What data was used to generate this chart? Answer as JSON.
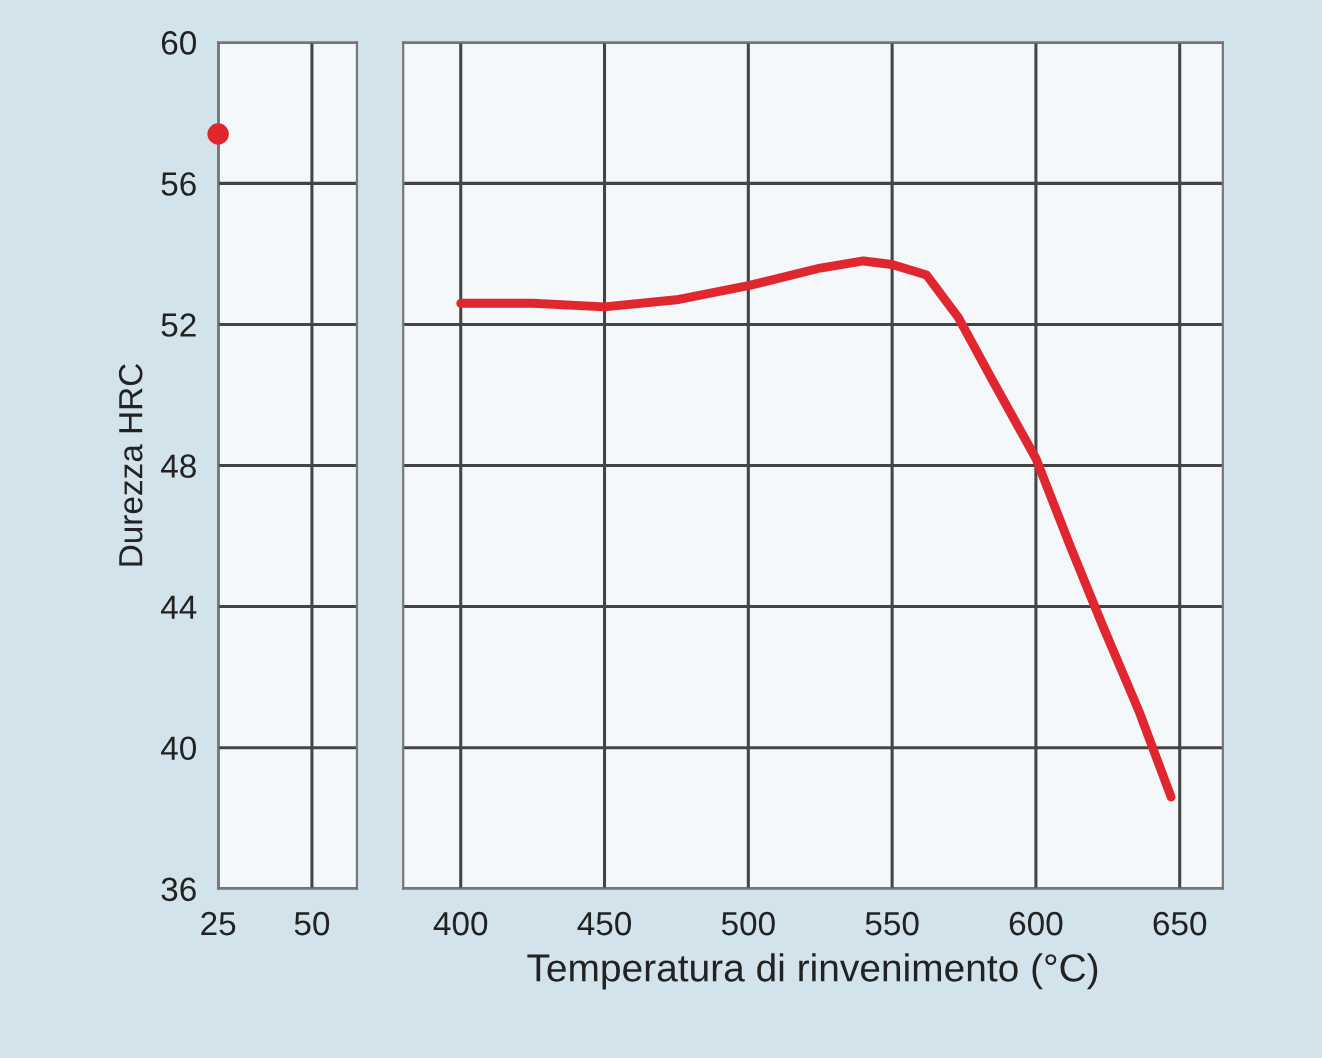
{
  "chart_data": [
    {
      "type": "scatter",
      "ylabel": "Durezza HRC",
      "x": [
        25
      ],
      "series": [
        {
          "color": "#e0262f",
          "values": [
            57.4
          ]
        }
      ],
      "xlim": [
        25,
        62
      ],
      "xticks": [
        25,
        50
      ],
      "ylim": [
        36,
        60
      ],
      "yticks": [
        36,
        40,
        44,
        48,
        52,
        56,
        60
      ],
      "grid": true,
      "marker": "circle"
    },
    {
      "type": "line",
      "xlabel": "Temperatura di rinvenimento (°C)",
      "series": [
        {
          "color": "#e0262f",
          "x": [
            400,
            425,
            450,
            475,
            500,
            525,
            540,
            550,
            562,
            573,
            585,
            600,
            612,
            623,
            636,
            647
          ],
          "values": [
            52.6,
            52.6,
            52.5,
            52.7,
            53.1,
            53.6,
            53.8,
            53.7,
            53.4,
            52.2,
            50.4,
            48.2,
            45.7,
            43.5,
            41.0,
            38.6
          ]
        }
      ],
      "xlim": [
        380,
        665
      ],
      "xticks": [
        400,
        450,
        500,
        550,
        600,
        650
      ],
      "ylim": [
        36,
        60
      ],
      "yticks": [
        36,
        40,
        44,
        48,
        52,
        56,
        60
      ],
      "grid": true,
      "tick_labels": "x",
      "line_style": "solid",
      "marker": "none"
    }
  ]
}
